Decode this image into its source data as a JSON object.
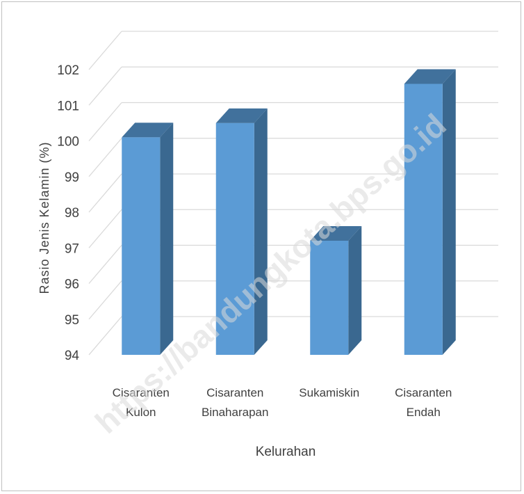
{
  "chart_data": {
    "type": "bar",
    "style": "3d-column",
    "categories": [
      [
        "Cisaranten",
        "Kulon"
      ],
      [
        "Cisaranten",
        "Binaharapan"
      ],
      [
        "Sukamiskin"
      ],
      [
        "Cisaranten",
        "Endah"
      ]
    ],
    "values": [
      100.1,
      100.5,
      97.2,
      101.6
    ],
    "xlabel": "Kelurahan",
    "ylabel": "Rasio Jenis Kelamin (%)",
    "ylim": [
      94,
      102
    ],
    "yticks": [
      94,
      95,
      96,
      97,
      98,
      99,
      100,
      101,
      102
    ],
    "grid": true,
    "legend": "none",
    "watermark": "https://bandungkota.bps.go.id",
    "colors": {
      "front": "#5b9bd5",
      "side": "#3a6890",
      "top": "#41719c",
      "grid": "#d9d9d9"
    }
  }
}
